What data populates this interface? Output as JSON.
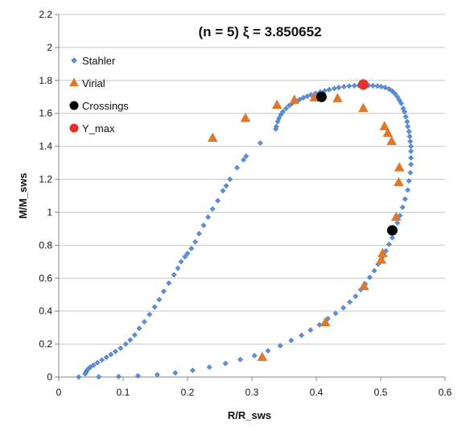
{
  "chart_data": {
    "type": "scatter",
    "title": "(n = 5)   ξ = 3.850652",
    "xlabel": "R/R_sws",
    "ylabel": "M/M_sws",
    "xlim": [
      0,
      0.6
    ],
    "ylim": [
      0,
      2.2
    ],
    "xticks": [
      "0",
      "0.1",
      "0.2",
      "0.3",
      "0.4",
      "0.5",
      "0.6"
    ],
    "yticks": [
      "0",
      "0.2",
      "0.4",
      "0.6",
      "0.8",
      "1",
      "1.2",
      "1.4",
      "1.6",
      "1.8",
      "2",
      "2.2"
    ],
    "grid": "horizontal",
    "legend_position": "top-left",
    "series": [
      {
        "name": "Stahler",
        "marker": "diamond",
        "color": "#5b8fd6",
        "points": [
          [
            0.031,
            0.0
          ],
          [
            0.062,
            0.001
          ],
          [
            0.093,
            0.003
          ],
          [
            0.123,
            0.007
          ],
          [
            0.153,
            0.014
          ],
          [
            0.181,
            0.025
          ],
          [
            0.208,
            0.04
          ],
          [
            0.234,
            0.06
          ],
          [
            0.259,
            0.082
          ],
          [
            0.282,
            0.106
          ],
          [
            0.304,
            0.13
          ],
          [
            0.325,
            0.159
          ],
          [
            0.344,
            0.19
          ],
          [
            0.361,
            0.222
          ],
          [
            0.377,
            0.253
          ],
          [
            0.391,
            0.285
          ],
          [
            0.405,
            0.317
          ],
          [
            0.418,
            0.354
          ],
          [
            0.43,
            0.386
          ],
          [
            0.442,
            0.42
          ],
          [
            0.452,
            0.455
          ],
          [
            0.461,
            0.49
          ],
          [
            0.469,
            0.53
          ],
          [
            0.476,
            0.565
          ],
          [
            0.483,
            0.605
          ],
          [
            0.49,
            0.645
          ],
          [
            0.496,
            0.685
          ],
          [
            0.502,
            0.725
          ],
          [
            0.508,
            0.765
          ],
          [
            0.513,
            0.805
          ],
          [
            0.518,
            0.845
          ],
          [
            0.522,
            0.89
          ],
          [
            0.526,
            0.935
          ],
          [
            0.53,
            0.98
          ],
          [
            0.534,
            1.03
          ],
          [
            0.538,
            1.08
          ],
          [
            0.542,
            1.135
          ],
          [
            0.544,
            1.19
          ],
          [
            0.546,
            1.24
          ],
          [
            0.547,
            1.29
          ],
          [
            0.547,
            1.33
          ],
          [
            0.547,
            1.37
          ],
          [
            0.547,
            1.4
          ],
          [
            0.546,
            1.43
          ],
          [
            0.545,
            1.46
          ],
          [
            0.544,
            1.49
          ],
          [
            0.542,
            1.52
          ],
          [
            0.541,
            1.55
          ],
          [
            0.539,
            1.58
          ],
          [
            0.537,
            1.61
          ],
          [
            0.535,
            1.63
          ],
          [
            0.532,
            1.66
          ],
          [
            0.529,
            1.68
          ],
          [
            0.526,
            1.7
          ],
          [
            0.522,
            1.72
          ],
          [
            0.518,
            1.735
          ],
          [
            0.513,
            1.748
          ],
          [
            0.507,
            1.757
          ],
          [
            0.501,
            1.762
          ],
          [
            0.495,
            1.766
          ],
          [
            0.488,
            1.768
          ],
          [
            0.481,
            1.769
          ],
          [
            0.473,
            1.77
          ],
          [
            0.466,
            1.769
          ],
          [
            0.459,
            1.768
          ],
          [
            0.451,
            1.766
          ],
          [
            0.443,
            1.762
          ],
          [
            0.435,
            1.757
          ],
          [
            0.428,
            1.751
          ],
          [
            0.42,
            1.744
          ],
          [
            0.413,
            1.737
          ],
          [
            0.406,
            1.73
          ],
          [
            0.399,
            1.722
          ],
          [
            0.392,
            1.713
          ],
          [
            0.386,
            1.704
          ],
          [
            0.38,
            1.695
          ],
          [
            0.374,
            1.684
          ],
          [
            0.369,
            1.674
          ],
          [
            0.363,
            1.662
          ],
          [
            0.358,
            1.648
          ],
          [
            0.353,
            1.63
          ],
          [
            0.348,
            1.61
          ],
          [
            0.345,
            1.592
          ],
          [
            0.342,
            1.57
          ],
          [
            0.34,
            1.55
          ],
          [
            0.338,
            1.52
          ],
          [
            0.337,
            1.505
          ],
          [
            0.313,
            1.42
          ],
          [
            0.291,
            1.34
          ],
          [
            0.287,
            1.318
          ],
          [
            0.277,
            1.27
          ],
          [
            0.266,
            1.2
          ],
          [
            0.26,
            1.16
          ],
          [
            0.255,
            1.13
          ],
          [
            0.247,
            1.07
          ],
          [
            0.239,
            1.02
          ],
          [
            0.232,
            0.97
          ],
          [
            0.225,
            0.92
          ],
          [
            0.218,
            0.87
          ],
          [
            0.212,
            0.82
          ],
          [
            0.206,
            0.78
          ],
          [
            0.2,
            0.75
          ],
          [
            0.196,
            0.73
          ],
          [
            0.19,
            0.7
          ],
          [
            0.185,
            0.66
          ],
          [
            0.179,
            0.62
          ],
          [
            0.171,
            0.57
          ],
          [
            0.163,
            0.52
          ],
          [
            0.156,
            0.47
          ],
          [
            0.149,
            0.425
          ],
          [
            0.141,
            0.38
          ],
          [
            0.133,
            0.335
          ],
          [
            0.125,
            0.295
          ],
          [
            0.118,
            0.255
          ],
          [
            0.111,
            0.225
          ],
          [
            0.104,
            0.2
          ],
          [
            0.096,
            0.175
          ],
          [
            0.088,
            0.155
          ],
          [
            0.081,
            0.137
          ],
          [
            0.074,
            0.12
          ],
          [
            0.067,
            0.103
          ],
          [
            0.06,
            0.087
          ],
          [
            0.054,
            0.072
          ],
          [
            0.049,
            0.06
          ],
          [
            0.046,
            0.05
          ],
          [
            0.044,
            0.042
          ],
          [
            0.043,
            0.034
          ],
          [
            0.042,
            0.026
          ],
          [
            0.041,
            0.019
          ]
        ]
      },
      {
        "name": "Virial",
        "marker": "triangle",
        "color": "#e0782c",
        "points": [
          [
            0.239,
            1.45
          ],
          [
            0.29,
            1.57
          ],
          [
            0.339,
            1.65
          ],
          [
            0.366,
            1.68
          ],
          [
            0.397,
            1.695
          ],
          [
            0.433,
            1.69
          ],
          [
            0.473,
            1.63
          ],
          [
            0.506,
            1.52
          ],
          [
            0.511,
            1.48
          ],
          [
            0.517,
            1.43
          ],
          [
            0.529,
            1.27
          ],
          [
            0.528,
            1.18
          ],
          [
            0.524,
            0.97
          ],
          [
            0.503,
            0.75
          ],
          [
            0.501,
            0.71
          ],
          [
            0.474,
            0.55
          ],
          [
            0.414,
            0.33
          ],
          [
            0.316,
            0.12
          ]
        ]
      },
      {
        "name": "Crossings",
        "marker": "circle",
        "color": "#000000",
        "points": [
          [
            0.408,
            1.7
          ],
          [
            0.518,
            0.89
          ]
        ]
      },
      {
        "name": "Y_max",
        "marker": "circle",
        "color": "#e8302a",
        "points": [
          [
            0.473,
            1.775
          ]
        ]
      }
    ]
  }
}
